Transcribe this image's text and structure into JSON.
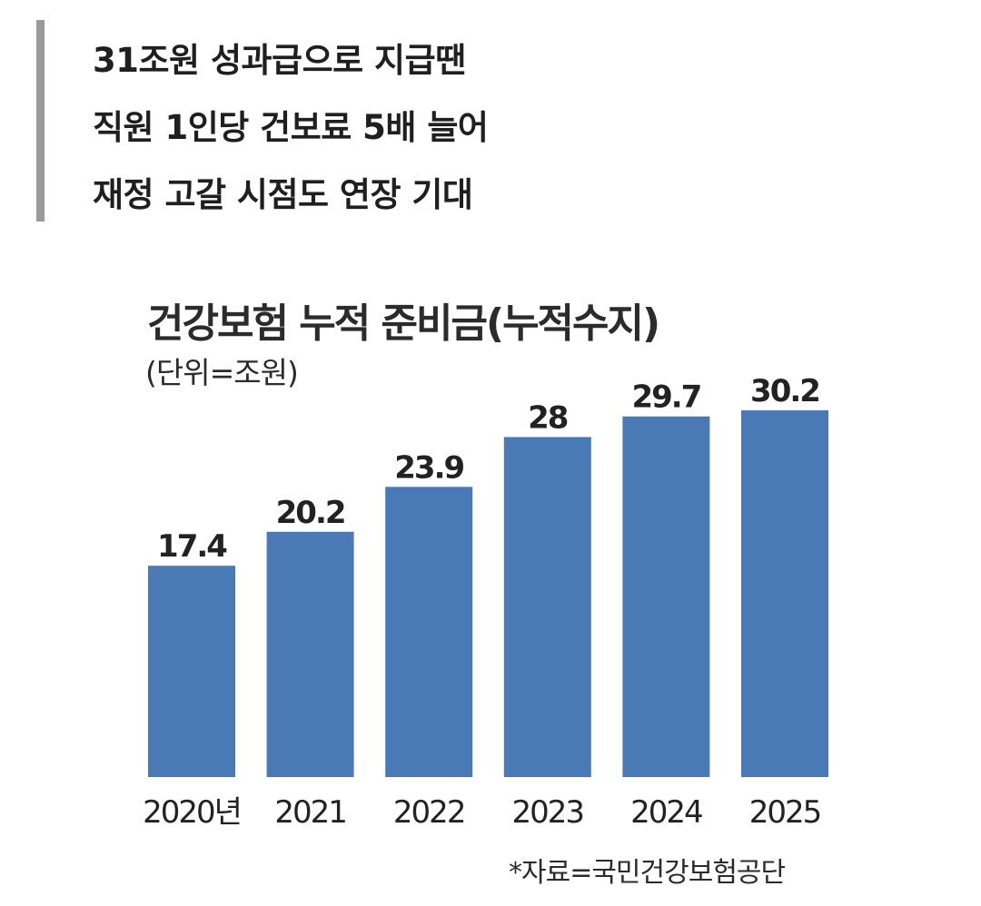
{
  "headline": {
    "lines": [
      "31조원 성과급으로 지급땐",
      "직원 1인당 건보료 5배 늘어",
      "재정 고갈 시점도 연장 기대"
    ]
  },
  "chart_data": {
    "type": "bar",
    "title": "건강보험 누적 준비금(누적수지)",
    "unit": "(단위=조원)",
    "categories": [
      "2020년",
      "2021",
      "2022",
      "2023",
      "2024",
      "2025"
    ],
    "values": [
      17.4,
      20.2,
      23.9,
      28,
      29.7,
      30.2
    ],
    "value_labels": [
      "17.4",
      "20.2",
      "23.9",
      "28",
      "29.7",
      "30.2"
    ],
    "bar_color": "#4a7ab5",
    "xlabel": "",
    "ylabel": "",
    "ylim": [
      0,
      30.2
    ],
    "grid": false,
    "source": "*자료=국민건강보험공단"
  }
}
